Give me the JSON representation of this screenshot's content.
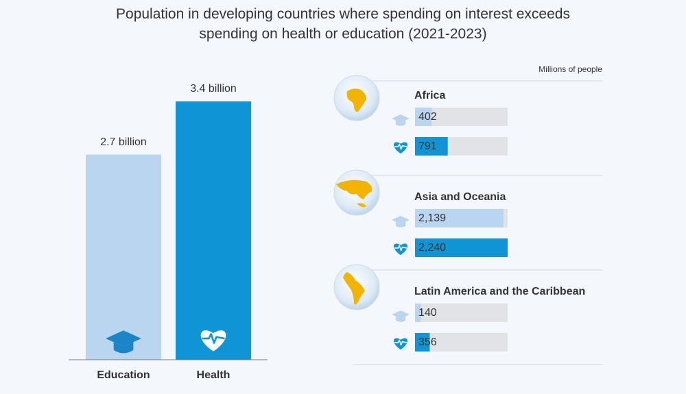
{
  "chart_data": [
    {
      "type": "bar",
      "title": "Population in developing countries where spending on interest exceeds spending on health or education (2021-2023)",
      "categories": [
        "Education",
        "Health"
      ],
      "values": [
        2.7,
        3.4
      ],
      "value_labels": [
        "2.7 billion",
        "3.4 billion"
      ],
      "colors": [
        "#b9d5ef",
        "#0f95d6"
      ],
      "ylim": [
        0,
        3.4
      ]
    },
    {
      "type": "hbar",
      "subtitle": "Millions of people",
      "categories": [
        "Africa",
        "Asia and Oceania",
        "Latin America and the Caribbean"
      ],
      "series": [
        {
          "color": "#b9d5ef",
          "values": [
            402,
            2139,
            140
          ],
          "value_labels": [
            "402",
            "2,139",
            "140"
          ]
        },
        {
          "color": "#0f95d6",
          "values": [
            791,
            2240,
            356
          ],
          "value_labels": [
            "791",
            "2,240",
            "356"
          ]
        }
      ],
      "xlim": [
        0,
        2240
      ]
    }
  ]
}
